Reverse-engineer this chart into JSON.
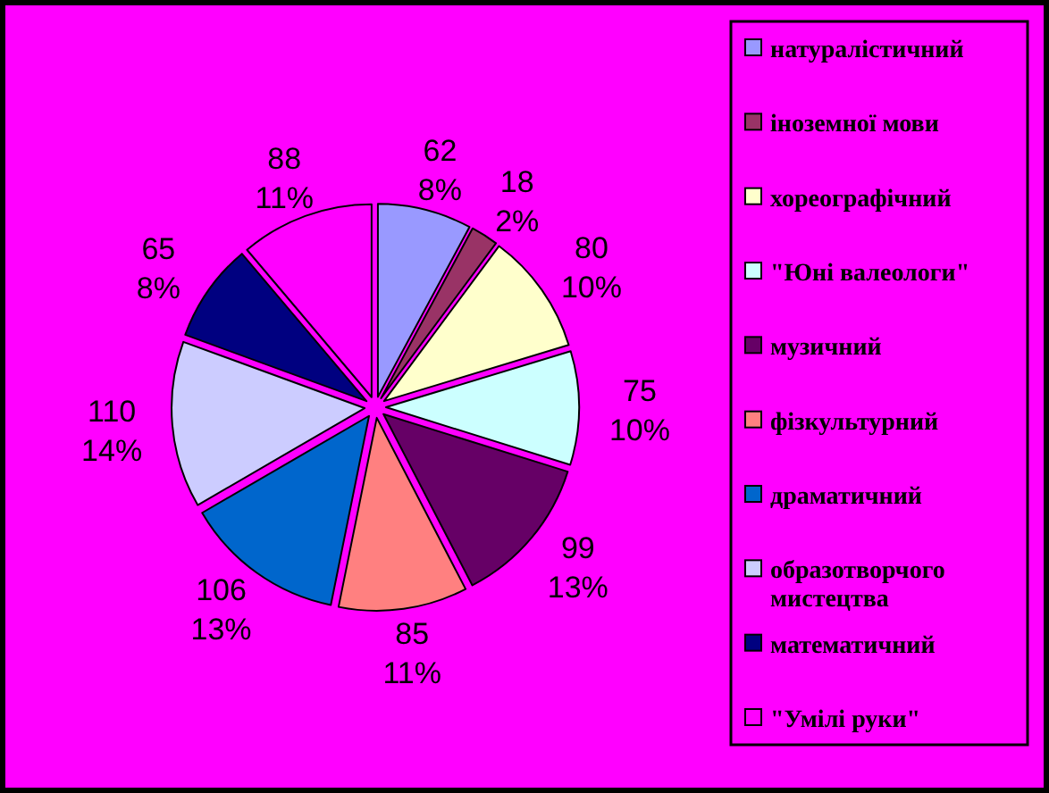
{
  "chart_data": {
    "type": "pie",
    "categories": [
      "натуралістичний",
      "іноземної мови",
      "хореографічний",
      "\"Юні валеологи\"",
      "музичний",
      "фізкультурний",
      "драматичний",
      "образотворчого мистецтва",
      "математичний",
      "\"Умілі руки\""
    ],
    "values": [
      62,
      18,
      80,
      75,
      99,
      85,
      106,
      110,
      65,
      88
    ],
    "colors": [
      "#9999ff",
      "#993366",
      "#ffffcc",
      "#ccffff",
      "#660066",
      "#ff8080",
      "#0066cc",
      "#ccccff",
      "#000080",
      "#ff00ff"
    ],
    "value_labels": [
      "62\n8%",
      "18\n2%",
      "80\n10%",
      "75\n10%",
      "99\n13%",
      "85\n11%",
      "106\n13%",
      "110\n14%",
      "65\n8%",
      "88\n11%"
    ],
    "legend": "right"
  }
}
